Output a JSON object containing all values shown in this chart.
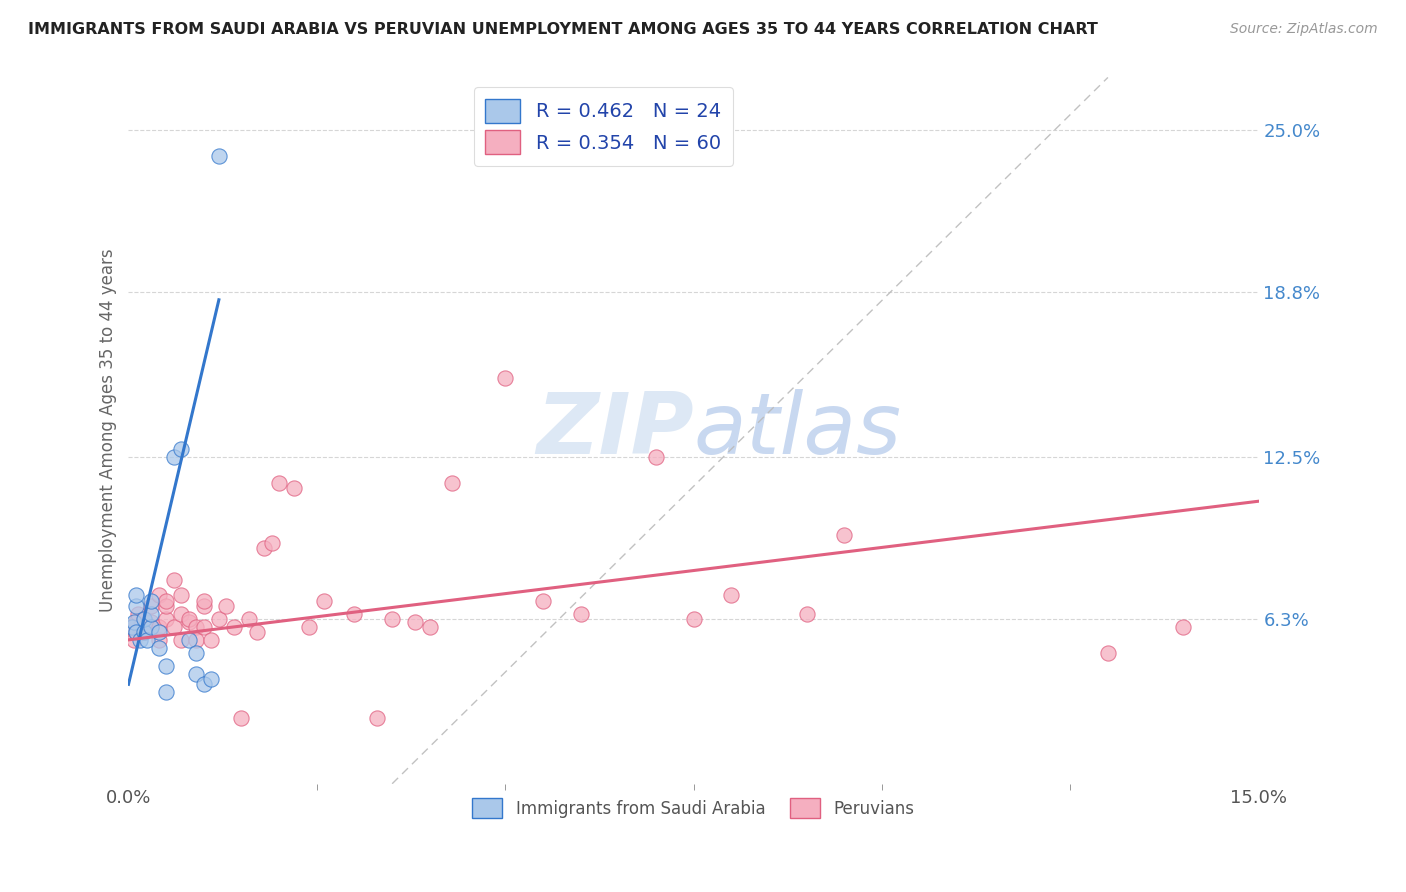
{
  "title": "IMMIGRANTS FROM SAUDI ARABIA VS PERUVIAN UNEMPLOYMENT AMONG AGES 35 TO 44 YEARS CORRELATION CHART",
  "source": "Source: ZipAtlas.com",
  "ylabel_label": "Unemployment Among Ages 35 to 44 years",
  "legend_blue_label": "Immigrants from Saudi Arabia",
  "legend_pink_label": "Peruvians",
  "legend_blue_R": "R = 0.462",
  "legend_blue_N": "N = 24",
  "legend_pink_R": "R = 0.354",
  "legend_pink_N": "N = 60",
  "xlim": [
    0.0,
    0.15
  ],
  "ylim": [
    0.0,
    0.27
  ],
  "yticks": [
    0.063,
    0.125,
    0.188,
    0.25
  ],
  "ytick_labels": [
    "6.3%",
    "12.5%",
    "18.8%",
    "25.0%"
  ],
  "blue_scatter_x": [
    0.0005,
    0.0008,
    0.001,
    0.001,
    0.001,
    0.0015,
    0.002,
    0.002,
    0.0025,
    0.003,
    0.003,
    0.003,
    0.004,
    0.004,
    0.005,
    0.005,
    0.006,
    0.007,
    0.008,
    0.009,
    0.009,
    0.01,
    0.011,
    0.012
  ],
  "blue_scatter_y": [
    0.06,
    0.062,
    0.058,
    0.068,
    0.072,
    0.055,
    0.058,
    0.063,
    0.055,
    0.06,
    0.065,
    0.07,
    0.052,
    0.058,
    0.035,
    0.045,
    0.125,
    0.128,
    0.055,
    0.042,
    0.05,
    0.038,
    0.04,
    0.24
  ],
  "pink_scatter_x": [
    0.0003,
    0.0005,
    0.0007,
    0.001,
    0.001,
    0.0012,
    0.0015,
    0.002,
    0.002,
    0.0022,
    0.003,
    0.003,
    0.003,
    0.004,
    0.004,
    0.004,
    0.005,
    0.005,
    0.005,
    0.006,
    0.006,
    0.007,
    0.007,
    0.007,
    0.008,
    0.008,
    0.009,
    0.009,
    0.01,
    0.01,
    0.01,
    0.011,
    0.012,
    0.013,
    0.014,
    0.015,
    0.016,
    0.017,
    0.018,
    0.019,
    0.02,
    0.022,
    0.024,
    0.026,
    0.03,
    0.033,
    0.035,
    0.038,
    0.04,
    0.043,
    0.05,
    0.055,
    0.06,
    0.07,
    0.075,
    0.08,
    0.09,
    0.095,
    0.13,
    0.14
  ],
  "pink_scatter_y": [
    0.058,
    0.06,
    0.055,
    0.062,
    0.058,
    0.065,
    0.06,
    0.063,
    0.058,
    0.06,
    0.062,
    0.068,
    0.06,
    0.055,
    0.06,
    0.072,
    0.063,
    0.068,
    0.07,
    0.06,
    0.078,
    0.065,
    0.055,
    0.072,
    0.062,
    0.063,
    0.06,
    0.055,
    0.06,
    0.068,
    0.07,
    0.055,
    0.063,
    0.068,
    0.06,
    0.025,
    0.063,
    0.058,
    0.09,
    0.092,
    0.115,
    0.113,
    0.06,
    0.07,
    0.065,
    0.025,
    0.063,
    0.062,
    0.06,
    0.115,
    0.155,
    0.07,
    0.065,
    0.125,
    0.063,
    0.072,
    0.065,
    0.095,
    0.05,
    0.06
  ],
  "blue_line_x": [
    0.0,
    0.012
  ],
  "blue_line_y": [
    0.038,
    0.185
  ],
  "pink_line_x": [
    0.0,
    0.15
  ],
  "pink_line_y": [
    0.055,
    0.108
  ],
  "dash_line_x": [
    0.035,
    0.13
  ],
  "dash_line_y": [
    0.0,
    0.27
  ],
  "bg_color": "#ffffff",
  "blue_scatter_color": "#aac8ea",
  "pink_scatter_color": "#f5afc0",
  "blue_line_color": "#3377cc",
  "pink_line_color": "#e06080",
  "grid_color": "#cccccc",
  "title_color": "#222222",
  "right_tick_color": "#4488cc",
  "watermark_color": "#dde8f5",
  "dashed_line_color": "#bbbbbb"
}
